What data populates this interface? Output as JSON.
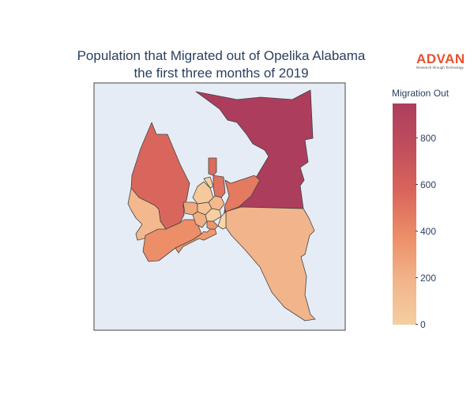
{
  "chart": {
    "title_line1": "Population that Migrated out of Opelika Alabama",
    "title_line2": "the first three months of 2019"
  },
  "logo": {
    "word": "ADVAN",
    "tagline": "Research through Technology"
  },
  "colorbar": {
    "title": "Migration Out",
    "ticks": [
      "0",
      "200",
      "400",
      "600",
      "800"
    ],
    "min": 0,
    "max": 950,
    "colors": [
      "#f3cfa1",
      "#f2b48a",
      "#ec8e68",
      "#d9665c",
      "#c14e5d",
      "#ad3d5d"
    ]
  },
  "map": {
    "background": "#e6ecf5",
    "border_color": "#444444",
    "regions": [
      {
        "name": "region-northeast",
        "value": 950,
        "color": "#ad3d5d"
      },
      {
        "name": "region-northwest",
        "value": 650,
        "color": "#d9665c"
      },
      {
        "name": "region-southeast",
        "value": 230,
        "color": "#f2b48a"
      },
      {
        "name": "region-west",
        "value": 240,
        "color": "#f3b88e"
      },
      {
        "name": "region-southwest",
        "value": 420,
        "color": "#ec8e68"
      },
      {
        "name": "region-east-central",
        "value": 480,
        "color": "#e47a60"
      },
      {
        "name": "region-west-central",
        "value": 360,
        "color": "#ee9a70"
      },
      {
        "name": "region-center-north",
        "value": 120,
        "color": "#f5c99b"
      },
      {
        "name": "region-center-north-east",
        "value": 500,
        "color": "#df7260"
      },
      {
        "name": "region-center-spire",
        "value": 560,
        "color": "#dc6c5e"
      },
      {
        "name": "region-center-a",
        "value": 80,
        "color": "#f6d2a4"
      },
      {
        "name": "region-center-b",
        "value": 300,
        "color": "#f1a87d"
      },
      {
        "name": "region-center-c",
        "value": 150,
        "color": "#f4c294"
      },
      {
        "name": "region-center-d",
        "value": 200,
        "color": "#f3b98c"
      },
      {
        "name": "region-center-e",
        "value": 90,
        "color": "#f6cfa2"
      },
      {
        "name": "region-center-f",
        "value": 270,
        "color": "#f0ae82"
      },
      {
        "name": "region-center-g",
        "value": 380,
        "color": "#ec9470"
      },
      {
        "name": "region-center-h",
        "value": 60,
        "color": "#f7d6a8"
      }
    ]
  }
}
